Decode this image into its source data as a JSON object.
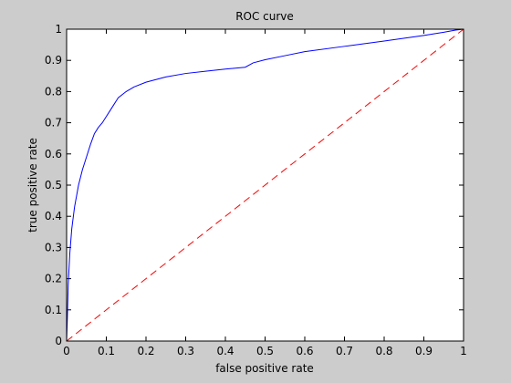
{
  "chart_data": {
    "type": "line",
    "title": "ROC curve",
    "xlabel": "false positive rate",
    "ylabel": "true positive rate",
    "xlim": [
      0,
      1
    ],
    "ylim": [
      0,
      1
    ],
    "x_ticks": [
      0,
      0.1,
      0.2,
      0.3,
      0.4,
      0.5,
      0.6,
      0.7,
      0.8,
      0.9,
      1
    ],
    "y_ticks": [
      0,
      0.1,
      0.2,
      0.3,
      0.4,
      0.5,
      0.6,
      0.7,
      0.8,
      0.9,
      1
    ],
    "x_tick_labels": [
      "0",
      "0.1",
      "0.2",
      "0.3",
      "0.4",
      "0.5",
      "0.6",
      "0.7",
      "0.8",
      "0.9",
      "1"
    ],
    "y_tick_labels": [
      "0",
      "0.1",
      "0.2",
      "0.3",
      "0.4",
      "0.5",
      "0.6",
      "0.7",
      "0.8",
      "0.9",
      "1"
    ],
    "grid": false,
    "series": [
      {
        "style": "solid",
        "color": "#0000ff",
        "points": [
          [
            0,
            0
          ],
          [
            0.002,
            0.08
          ],
          [
            0.004,
            0.18
          ],
          [
            0.008,
            0.28
          ],
          [
            0.013,
            0.36
          ],
          [
            0.02,
            0.43
          ],
          [
            0.03,
            0.5
          ],
          [
            0.04,
            0.55
          ],
          [
            0.05,
            0.59
          ],
          [
            0.06,
            0.63
          ],
          [
            0.07,
            0.665
          ],
          [
            0.08,
            0.685
          ],
          [
            0.09,
            0.7
          ],
          [
            0.1,
            0.72
          ],
          [
            0.11,
            0.74
          ],
          [
            0.12,
            0.76
          ],
          [
            0.13,
            0.78
          ],
          [
            0.15,
            0.8
          ],
          [
            0.17,
            0.815
          ],
          [
            0.2,
            0.83
          ],
          [
            0.25,
            0.847
          ],
          [
            0.3,
            0.858
          ],
          [
            0.35,
            0.865
          ],
          [
            0.4,
            0.872
          ],
          [
            0.45,
            0.878
          ],
          [
            0.47,
            0.892
          ],
          [
            0.5,
            0.902
          ],
          [
            0.55,
            0.915
          ],
          [
            0.6,
            0.928
          ],
          [
            0.7,
            0.945
          ],
          [
            0.8,
            0.962
          ],
          [
            0.9,
            0.98
          ],
          [
            0.95,
            0.99
          ],
          [
            0.98,
            0.997
          ],
          [
            1.0,
            1.0
          ]
        ]
      },
      {
        "style": "dashed",
        "color": "#ff0000",
        "points": [
          [
            0,
            0
          ],
          [
            1,
            1
          ]
        ]
      }
    ]
  }
}
